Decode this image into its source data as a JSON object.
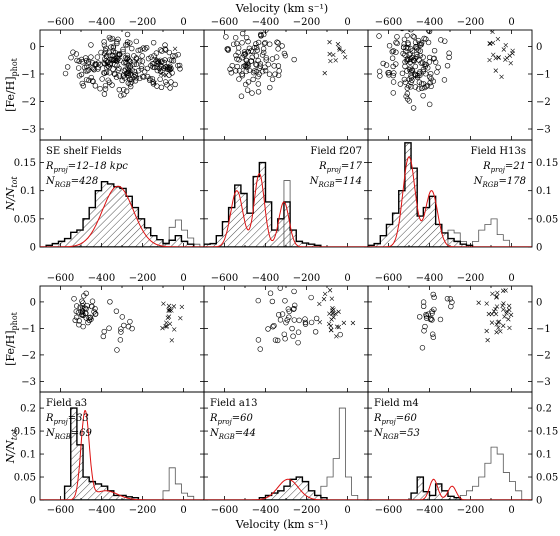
{
  "figure": {
    "top_title": "Velocity (km s⁻¹)",
    "bottom_title": "Velocity (km s⁻¹)",
    "feh_label_main": "[Fe/H]",
    "feh_label_sub": "phot",
    "n_label_main": "N/N",
    "n_label_sub": "tot"
  },
  "chart_data": {
    "type": "composite",
    "title": "",
    "x_axis": {
      "label": "Velocity (km s⁻¹)",
      "range": [
        -700,
        100
      ],
      "ticks": [
        -600,
        -400,
        -200,
        0
      ],
      "tick_labels": [
        "−600",
        "−400",
        "−200",
        "0"
      ]
    },
    "feh_axis": {
      "label": "[Fe/H]phot",
      "range": [
        -3.4,
        0.6
      ],
      "inverted": true,
      "ticks": [
        0,
        -1,
        -2,
        -3
      ],
      "tick_labels": [
        "0",
        "−1",
        "−2",
        "−3"
      ]
    },
    "hist_axes": [
      {
        "row": "top",
        "range": [
          0,
          0.19
        ],
        "ticks": [
          0,
          0.05,
          0.1,
          0.15
        ],
        "tick_labels": [
          "0",
          "0.05",
          "0.1",
          "0.15"
        ]
      },
      {
        "row": "bottom",
        "range": [
          0,
          0.235
        ],
        "ticks": [
          0,
          0.05,
          0.1,
          0.15,
          0.2
        ],
        "tick_labels": [
          "0",
          "0.05",
          "0.1",
          "0.15",
          "0.2"
        ]
      }
    ],
    "fields": [
      {
        "name": "SE shelf Fields",
        "rproj_value": "=12–18 kpc",
        "nrgb_value": "=428",
        "label_side": "left",
        "clusters": [
          {
            "type": "circle",
            "v": -320,
            "sv": 110,
            "f": -0.7,
            "sf": 0.5,
            "n": 220
          },
          {
            "type": "circle",
            "v": -80,
            "sv": 25,
            "f": -0.7,
            "sf": 0.3,
            "n": 40
          },
          {
            "type": "cross",
            "v": -100,
            "sv": 40,
            "f": -0.9,
            "sf": 0.5,
            "n": 8
          }
        ],
        "hist_bins": [
          -0.003,
          0.003,
          0.006,
          0.01,
          0.015,
          0.026,
          0.03,
          0.05,
          0.07,
          0.1,
          0.116,
          0.112,
          0.107,
          0.104,
          0.09,
          0.07,
          0.05,
          0.034,
          0.02,
          0.013,
          0.006,
          0.012,
          0.02,
          0.01,
          0.005,
          0,
          0,
          0
        ],
        "outline_bins": [
          0,
          0,
          0,
          0,
          0,
          0,
          0,
          0,
          0,
          0,
          0,
          0,
          0,
          0,
          0,
          0,
          0,
          0,
          0,
          0,
          0.007,
          0.035,
          0.048,
          0.03,
          0.016,
          0.005,
          0,
          0
        ],
        "model": [
          {
            "a": 0.108,
            "mu": -320,
            "s": 75
          }
        ]
      },
      {
        "name": "Field f207",
        "rproj_value": "=17",
        "nrgb_value": "=114",
        "label_side": "right",
        "clusters": [
          {
            "type": "circle",
            "v": -450,
            "sv": 70,
            "f": -0.5,
            "sf": 0.55,
            "n": 110
          },
          {
            "type": "cross",
            "v": -60,
            "sv": 30,
            "f": -0.4,
            "sf": 0.5,
            "n": 12
          }
        ],
        "hist_bins": [
          0.005,
          0.006,
          0.02,
          0.045,
          0.07,
          0.11,
          0.095,
          0.06,
          0.125,
          0.15,
          0.08,
          0.03,
          0.05,
          0.08,
          0.03,
          0.01,
          0.007,
          0.005,
          0.003,
          0,
          0,
          0,
          0,
          0,
          0,
          0,
          0,
          0
        ],
        "outline_bins": [
          0,
          0,
          0,
          0,
          0,
          0,
          0,
          0,
          0,
          0,
          0,
          0,
          0,
          0.118,
          0,
          0,
          0,
          0,
          0,
          0,
          0,
          0,
          0,
          0,
          0,
          0,
          0,
          0
        ],
        "model": [
          {
            "a": 0.1,
            "mu": -540,
            "s": 30
          },
          {
            "a": 0.13,
            "mu": -430,
            "s": 25
          },
          {
            "a": 0.08,
            "mu": -310,
            "s": 25
          }
        ]
      },
      {
        "name": "Field H13s",
        "rproj_value": "=21",
        "nrgb_value": "=178",
        "label_side": "right",
        "clusters": [
          {
            "type": "circle",
            "v": -480,
            "sv": 65,
            "f": -0.6,
            "sf": 0.6,
            "n": 150
          },
          {
            "type": "cross",
            "v": -60,
            "sv": 35,
            "f": -0.4,
            "sf": 0.5,
            "n": 20
          }
        ],
        "hist_bins": [
          0.003,
          0.006,
          0.02,
          0.04,
          0.06,
          0.1,
          0.185,
          0.14,
          0.055,
          0.07,
          0.09,
          0.04,
          0.025,
          0.015,
          0.01,
          0.005,
          0.003,
          0,
          0,
          0,
          0,
          0,
          0,
          0,
          0,
          0,
          0,
          0
        ],
        "outline_bins": [
          0,
          0,
          0,
          0,
          0,
          0,
          0,
          0,
          0,
          0,
          0,
          0,
          0,
          0.03,
          0.025,
          0.01,
          0,
          0.01,
          0.03,
          0.04,
          0.05,
          0.022,
          0.012,
          0,
          0,
          0,
          0,
          0
        ],
        "model": [
          {
            "a": 0.16,
            "mu": -500,
            "s": 30
          },
          {
            "a": 0.1,
            "mu": -390,
            "s": 30
          }
        ]
      },
      {
        "name": "Field a3",
        "rproj_value": "=33",
        "nrgb_value": "=69",
        "label_side": "left",
        "clusters": [
          {
            "type": "circle",
            "v": -480,
            "sv": 25,
            "f": -0.3,
            "sf": 0.3,
            "n": 40
          },
          {
            "type": "circle",
            "v": -330,
            "sv": 70,
            "f": -1.0,
            "sf": 0.5,
            "n": 14
          },
          {
            "type": "cross",
            "v": -60,
            "sv": 30,
            "f": -0.6,
            "sf": 0.4,
            "n": 18
          }
        ],
        "hist_bins": [
          0,
          0,
          0,
          0,
          0.03,
          0.2,
          0.12,
          0.05,
          0.04,
          0.035,
          0.03,
          0.02,
          0.01,
          0.01,
          0.007,
          0.005,
          0,
          0,
          0,
          0,
          0,
          0,
          0,
          0,
          0,
          0,
          0,
          0
        ],
        "outline_bins": [
          0,
          0,
          0,
          0,
          0,
          0,
          0,
          0,
          0,
          0,
          0,
          0,
          0,
          0,
          0,
          0,
          0,
          0,
          0,
          0,
          0.02,
          0.07,
          0.035,
          0.015,
          0.008,
          0,
          0,
          0
        ],
        "model": [
          {
            "a": 0.19,
            "mu": -480,
            "s": 20
          },
          {
            "a": 0.02,
            "mu": -380,
            "s": 60
          }
        ]
      },
      {
        "name": "Field a13",
        "rproj_value": "=60",
        "nrgb_value": "=44",
        "label_side": "left",
        "clusters": [
          {
            "type": "circle",
            "v": -280,
            "sv": 80,
            "f": -0.8,
            "sf": 0.55,
            "n": 40
          },
          {
            "type": "cross",
            "v": -80,
            "sv": 40,
            "f": -0.6,
            "sf": 0.5,
            "n": 26
          }
        ],
        "hist_bins": [
          0,
          0,
          0,
          0,
          0,
          0,
          0,
          0,
          0,
          0.005,
          0.01,
          0.015,
          0.02,
          0.03,
          0.045,
          0.05,
          0.04,
          0.02,
          0.01,
          0.005,
          0,
          0,
          0,
          0,
          0,
          0,
          0,
          0
        ],
        "outline_bins": [
          0,
          0,
          0,
          0,
          0,
          0,
          0,
          0,
          0,
          0,
          0,
          0,
          0,
          0,
          0,
          0,
          0,
          0,
          0,
          0.03,
          0.05,
          0.09,
          0.2,
          0.05,
          0.01,
          0,
          0,
          0
        ],
        "model": [
          {
            "a": 0.045,
            "mu": -290,
            "s": 50
          }
        ]
      },
      {
        "name": "Field m4",
        "rproj_value": "=60",
        "nrgb_value": "=53",
        "label_side": "left",
        "clusters": [
          {
            "type": "circle",
            "v": -380,
            "sv": 40,
            "f": -0.6,
            "sf": 0.5,
            "n": 25
          },
          {
            "type": "cross",
            "v": -60,
            "sv": 40,
            "f": -0.5,
            "sf": 0.5,
            "n": 35
          }
        ],
        "hist_bins": [
          0,
          0,
          0,
          0,
          0,
          0,
          0,
          0.015,
          0.05,
          0.018,
          0.01,
          0.035,
          0.02,
          0.008,
          0.005,
          0,
          0,
          0,
          0,
          0,
          0,
          0,
          0,
          0,
          0,
          0,
          0,
          0
        ],
        "outline_bins": [
          0,
          0,
          0,
          0,
          0,
          0,
          0,
          0,
          0,
          0,
          0,
          0,
          0,
          0,
          0,
          0.01,
          0.02,
          0.03,
          0.05,
          0.08,
          0.115,
          0.1,
          0.06,
          0.04,
          0.02,
          0,
          0,
          0
        ],
        "model": [
          {
            "a": 0.045,
            "mu": -380,
            "s": 20
          },
          {
            "a": 0.03,
            "mu": -290,
            "s": 20
          }
        ]
      }
    ]
  }
}
